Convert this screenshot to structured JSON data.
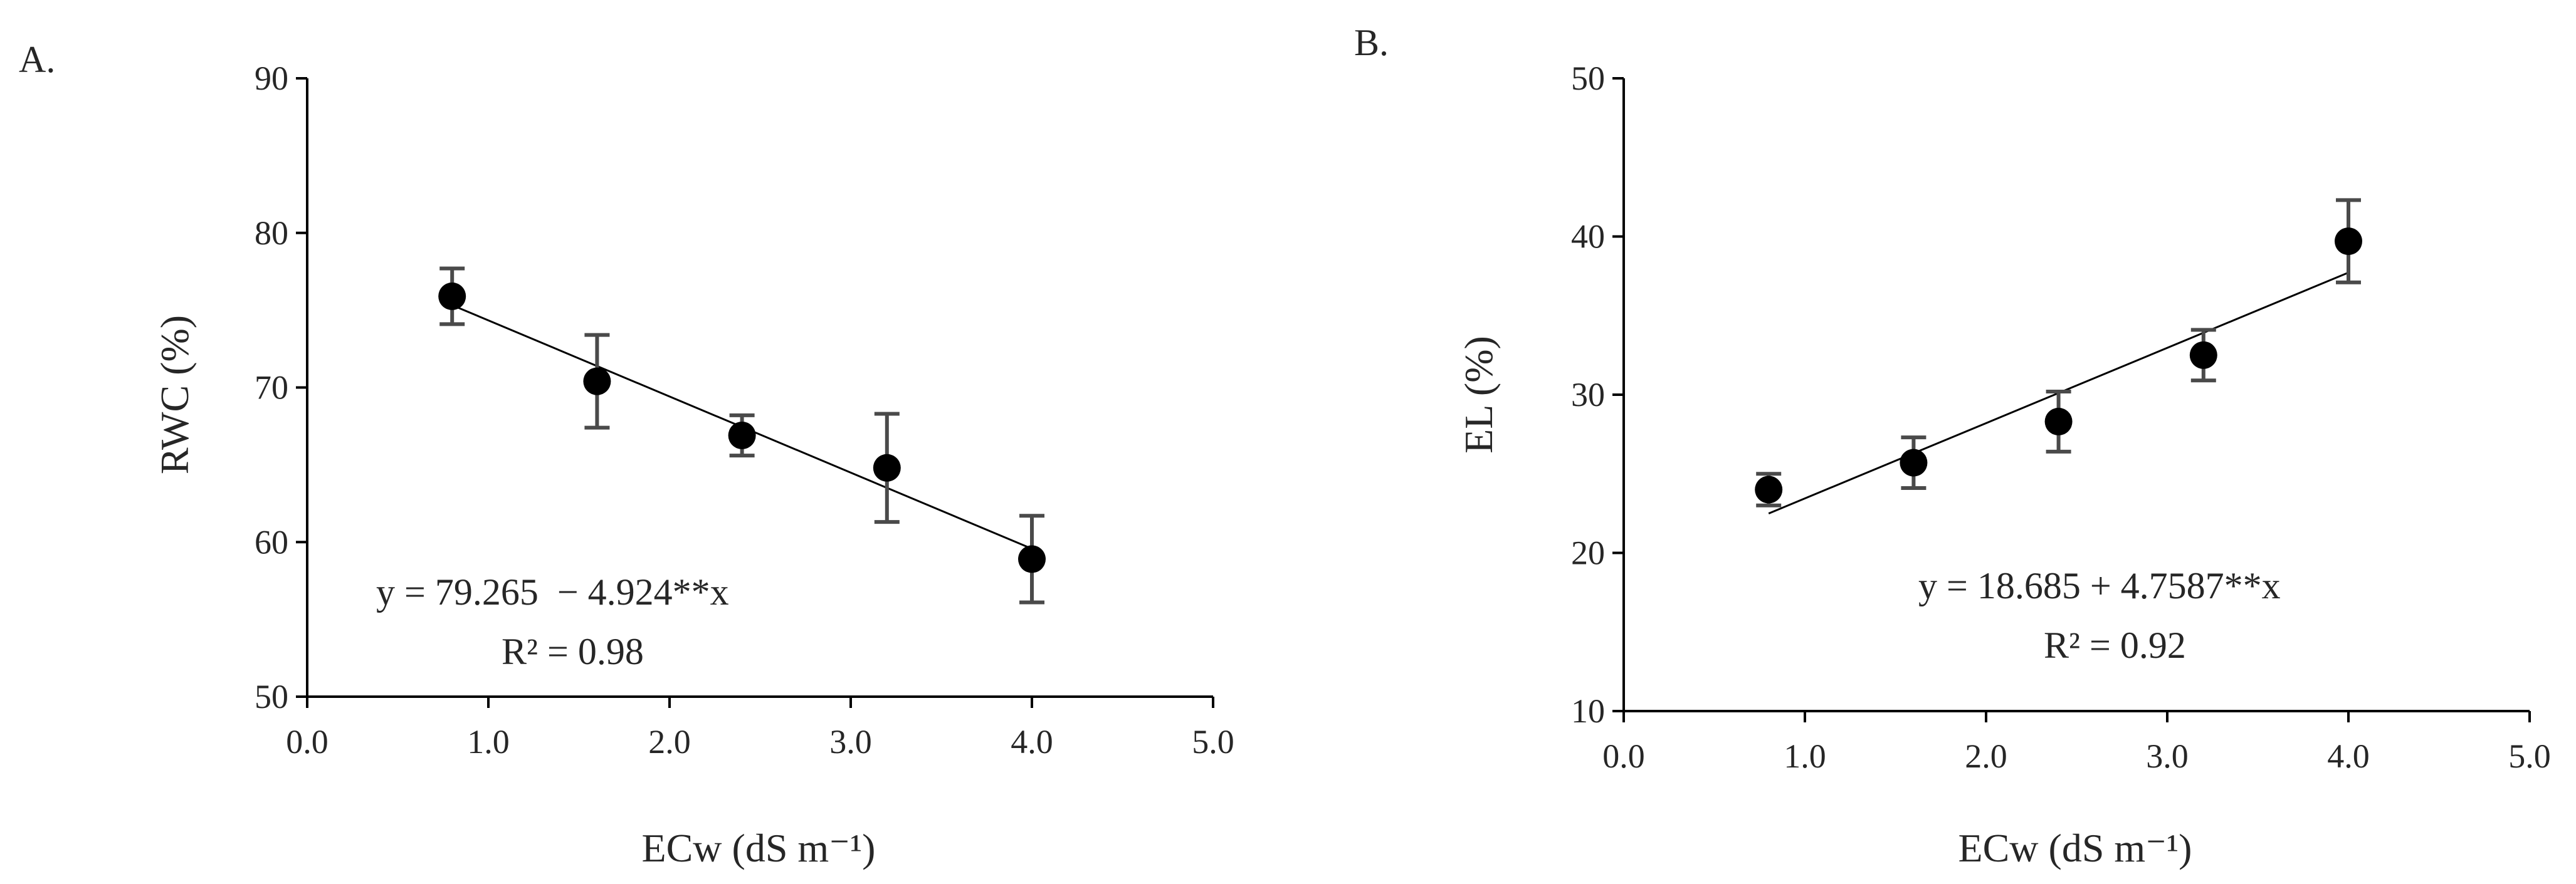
{
  "chart_data": [
    {
      "panel_label": "A.",
      "type": "scatter",
      "xlabel": "ECw (dS m⁻¹)",
      "ylabel": "RWC (%)",
      "xlim": [
        0.0,
        5.0
      ],
      "ylim": [
        50,
        90
      ],
      "xticks": [
        "0.0",
        "1.0",
        "2.0",
        "3.0",
        "4.0",
        "5.0"
      ],
      "yticks": [
        "50",
        "60",
        "70",
        "80",
        "90"
      ],
      "grid": false,
      "points": [
        {
          "x": 0.8,
          "y": 75.9,
          "err": 1.8
        },
        {
          "x": 1.6,
          "y": 70.4,
          "err": 3.0
        },
        {
          "x": 2.4,
          "y": 66.9,
          "err": 1.3
        },
        {
          "x": 3.2,
          "y": 64.8,
          "err": 3.5
        },
        {
          "x": 4.0,
          "y": 58.9,
          "err": 2.8
        }
      ],
      "trendline": {
        "intercept": 79.265,
        "slope": -4.924
      },
      "equation": "y = 79.265  − 4.924**x",
      "r2": "R² = 0.98"
    },
    {
      "panel_label": "B.",
      "type": "scatter",
      "xlabel": "ECw (dS m⁻¹)",
      "ylabel": "EL (%)",
      "xlim": [
        0.0,
        5.0
      ],
      "ylim": [
        10,
        50
      ],
      "xticks": [
        "0.0",
        "1.0",
        "2.0",
        "3.0",
        "4.0",
        "5.0"
      ],
      "yticks": [
        "10",
        "20",
        "30",
        "40",
        "50"
      ],
      "grid": false,
      "points": [
        {
          "x": 0.8,
          "y": 24.0,
          "err": 1.0
        },
        {
          "x": 1.6,
          "y": 25.7,
          "err": 1.6
        },
        {
          "x": 2.4,
          "y": 28.3,
          "err": 1.9
        },
        {
          "x": 3.2,
          "y": 32.5,
          "err": 1.6
        },
        {
          "x": 4.0,
          "y": 39.7,
          "err": 2.6
        }
      ],
      "trendline": {
        "intercept": 18.685,
        "slope": 4.7587
      },
      "equation": "y = 18.685 + 4.7587**x",
      "r2": "R² = 0.92"
    }
  ]
}
